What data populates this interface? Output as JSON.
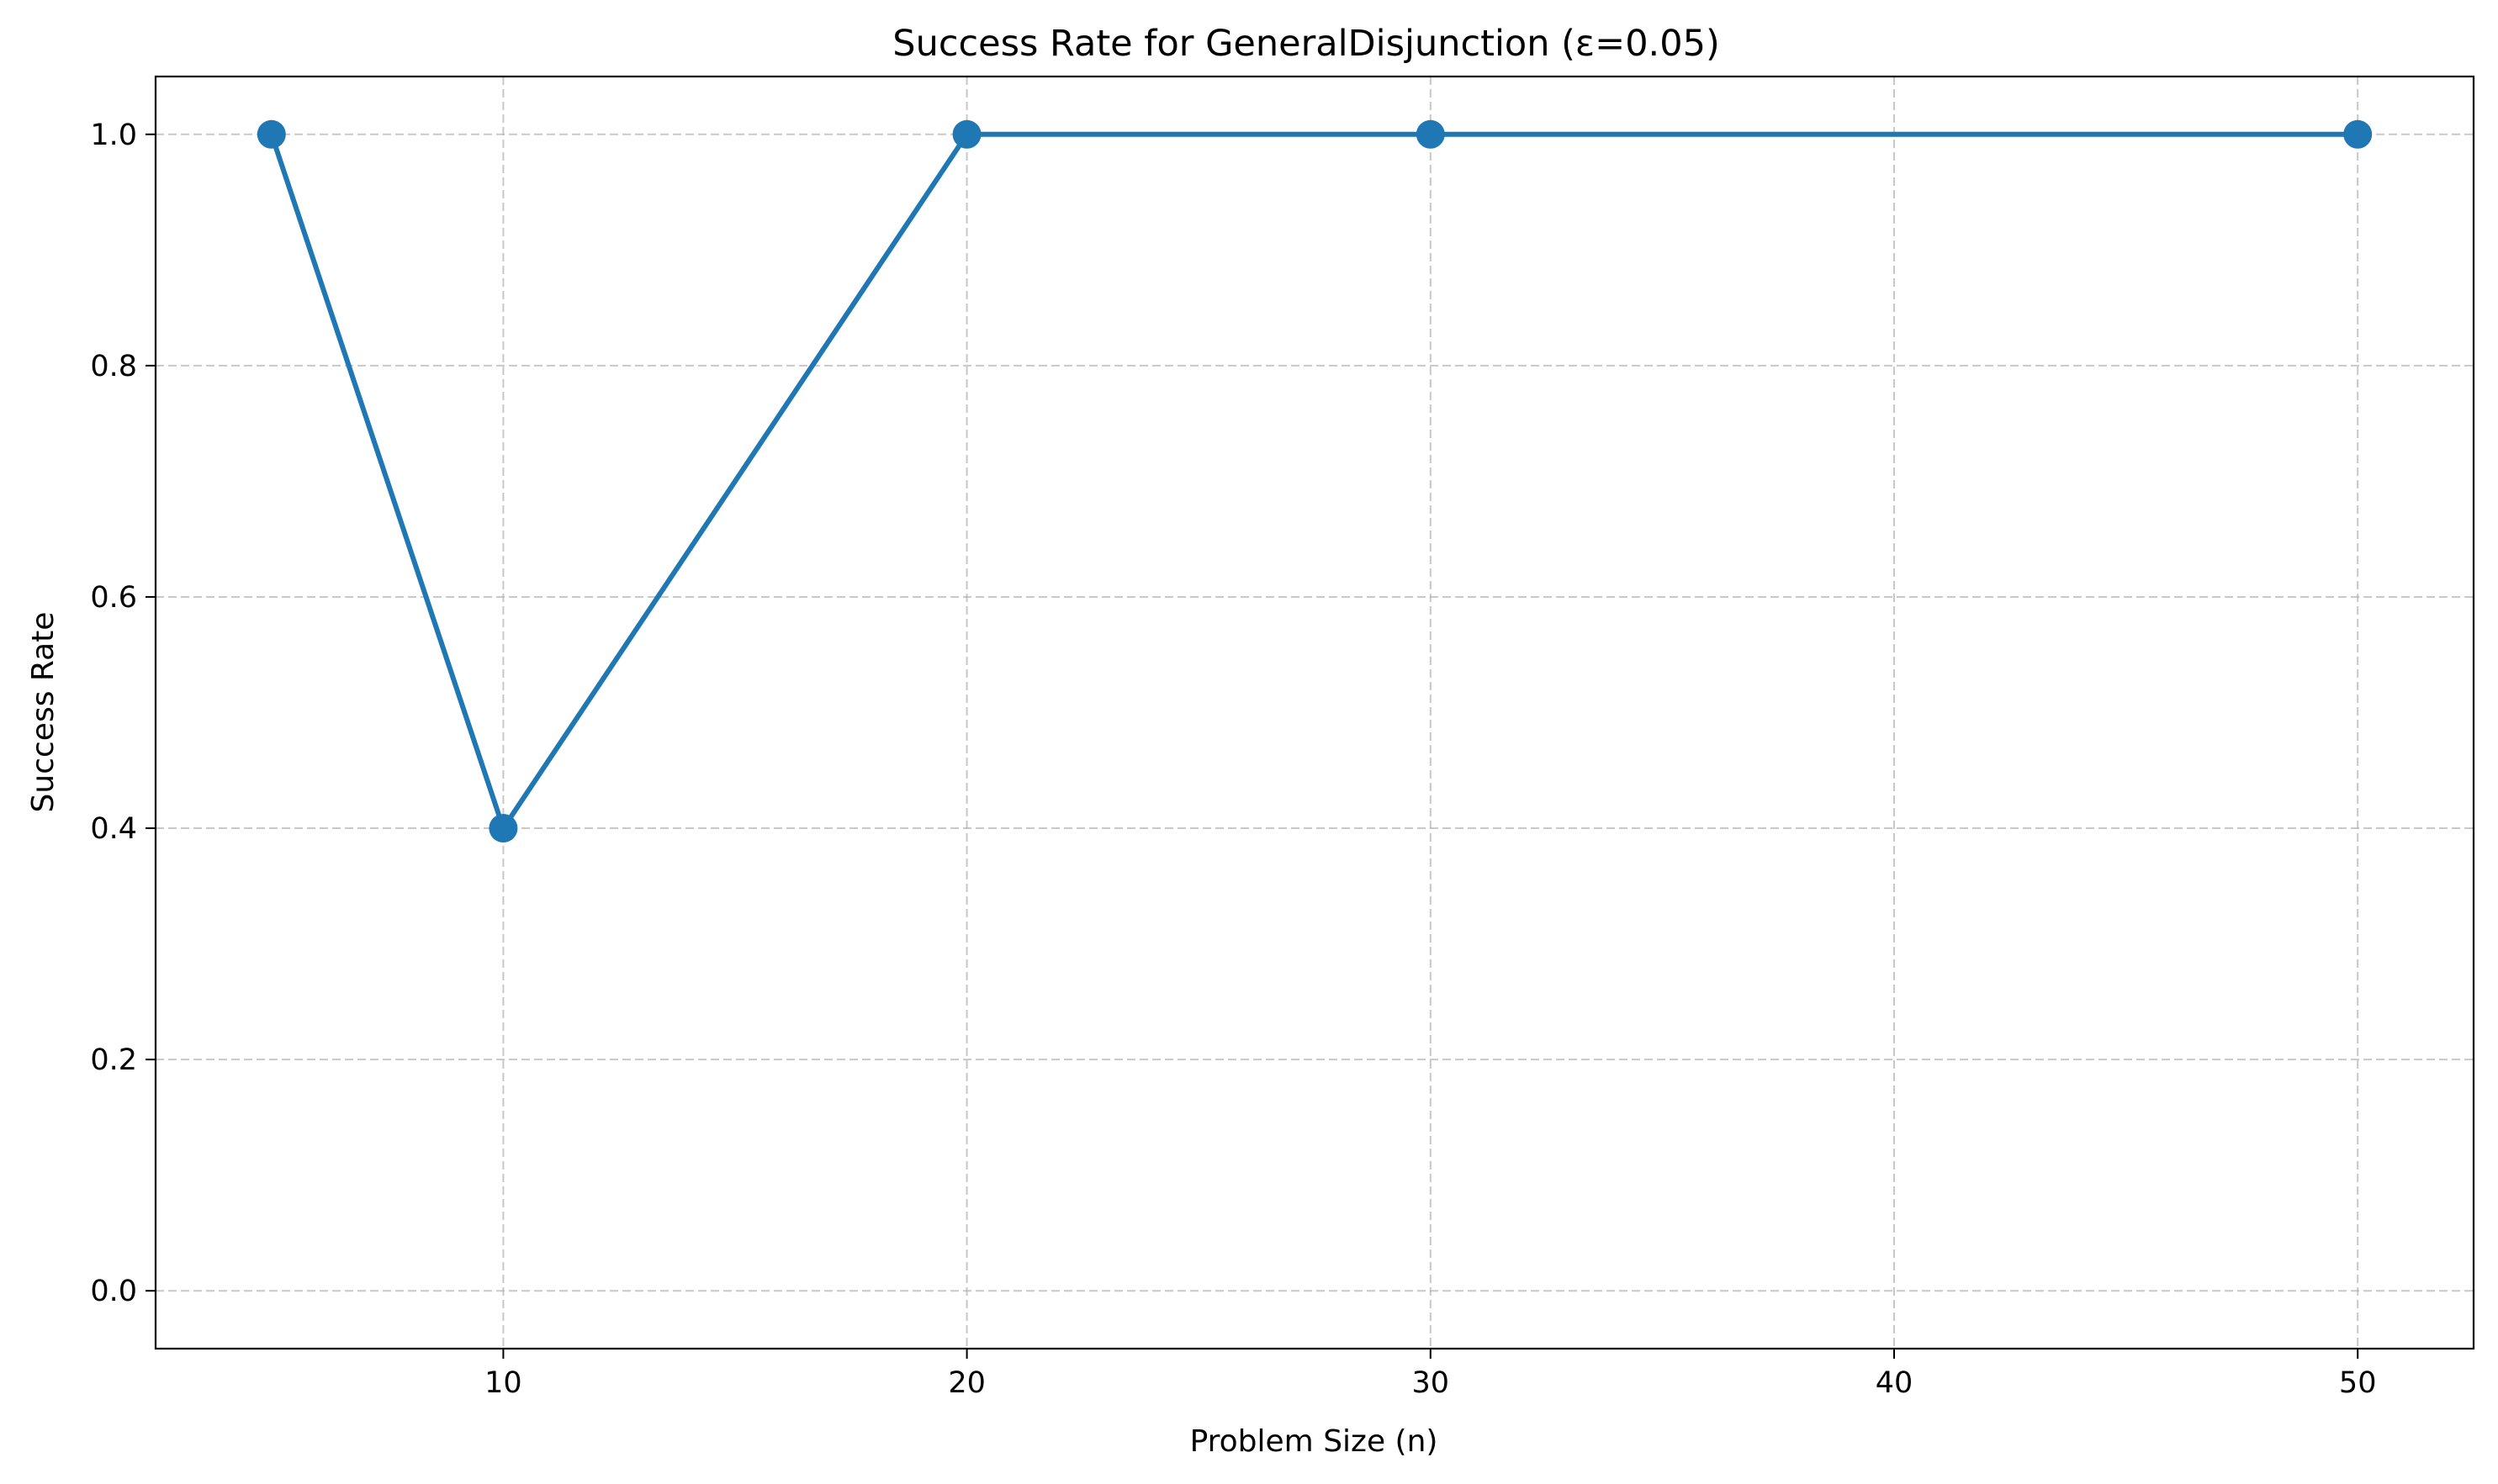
{
  "chart_data": {
    "type": "line",
    "title": "Success Rate for GeneralDisjunction (ε=0.05)",
    "xlabel": "Problem Size (n)",
    "ylabel": "Success Rate",
    "xlim": [
      2.5,
      52.5
    ],
    "ylim": [
      -0.05,
      1.05
    ],
    "xticks": [
      10,
      20,
      30,
      40,
      50
    ],
    "xtick_labels": [
      "10",
      "20",
      "30",
      "40",
      "50"
    ],
    "yticks": [
      0.0,
      0.2,
      0.4,
      0.6,
      0.8,
      1.0
    ],
    "ytick_labels": [
      "0.0",
      "0.2",
      "0.4",
      "0.6",
      "0.8",
      "1.0"
    ],
    "grid": true,
    "series": [
      {
        "x": [
          5,
          10,
          20,
          30,
          50
        ],
        "y": [
          1.0,
          0.4,
          1.0,
          1.0,
          1.0
        ],
        "color": "#1f77b4",
        "marker": "circle"
      }
    ]
  }
}
